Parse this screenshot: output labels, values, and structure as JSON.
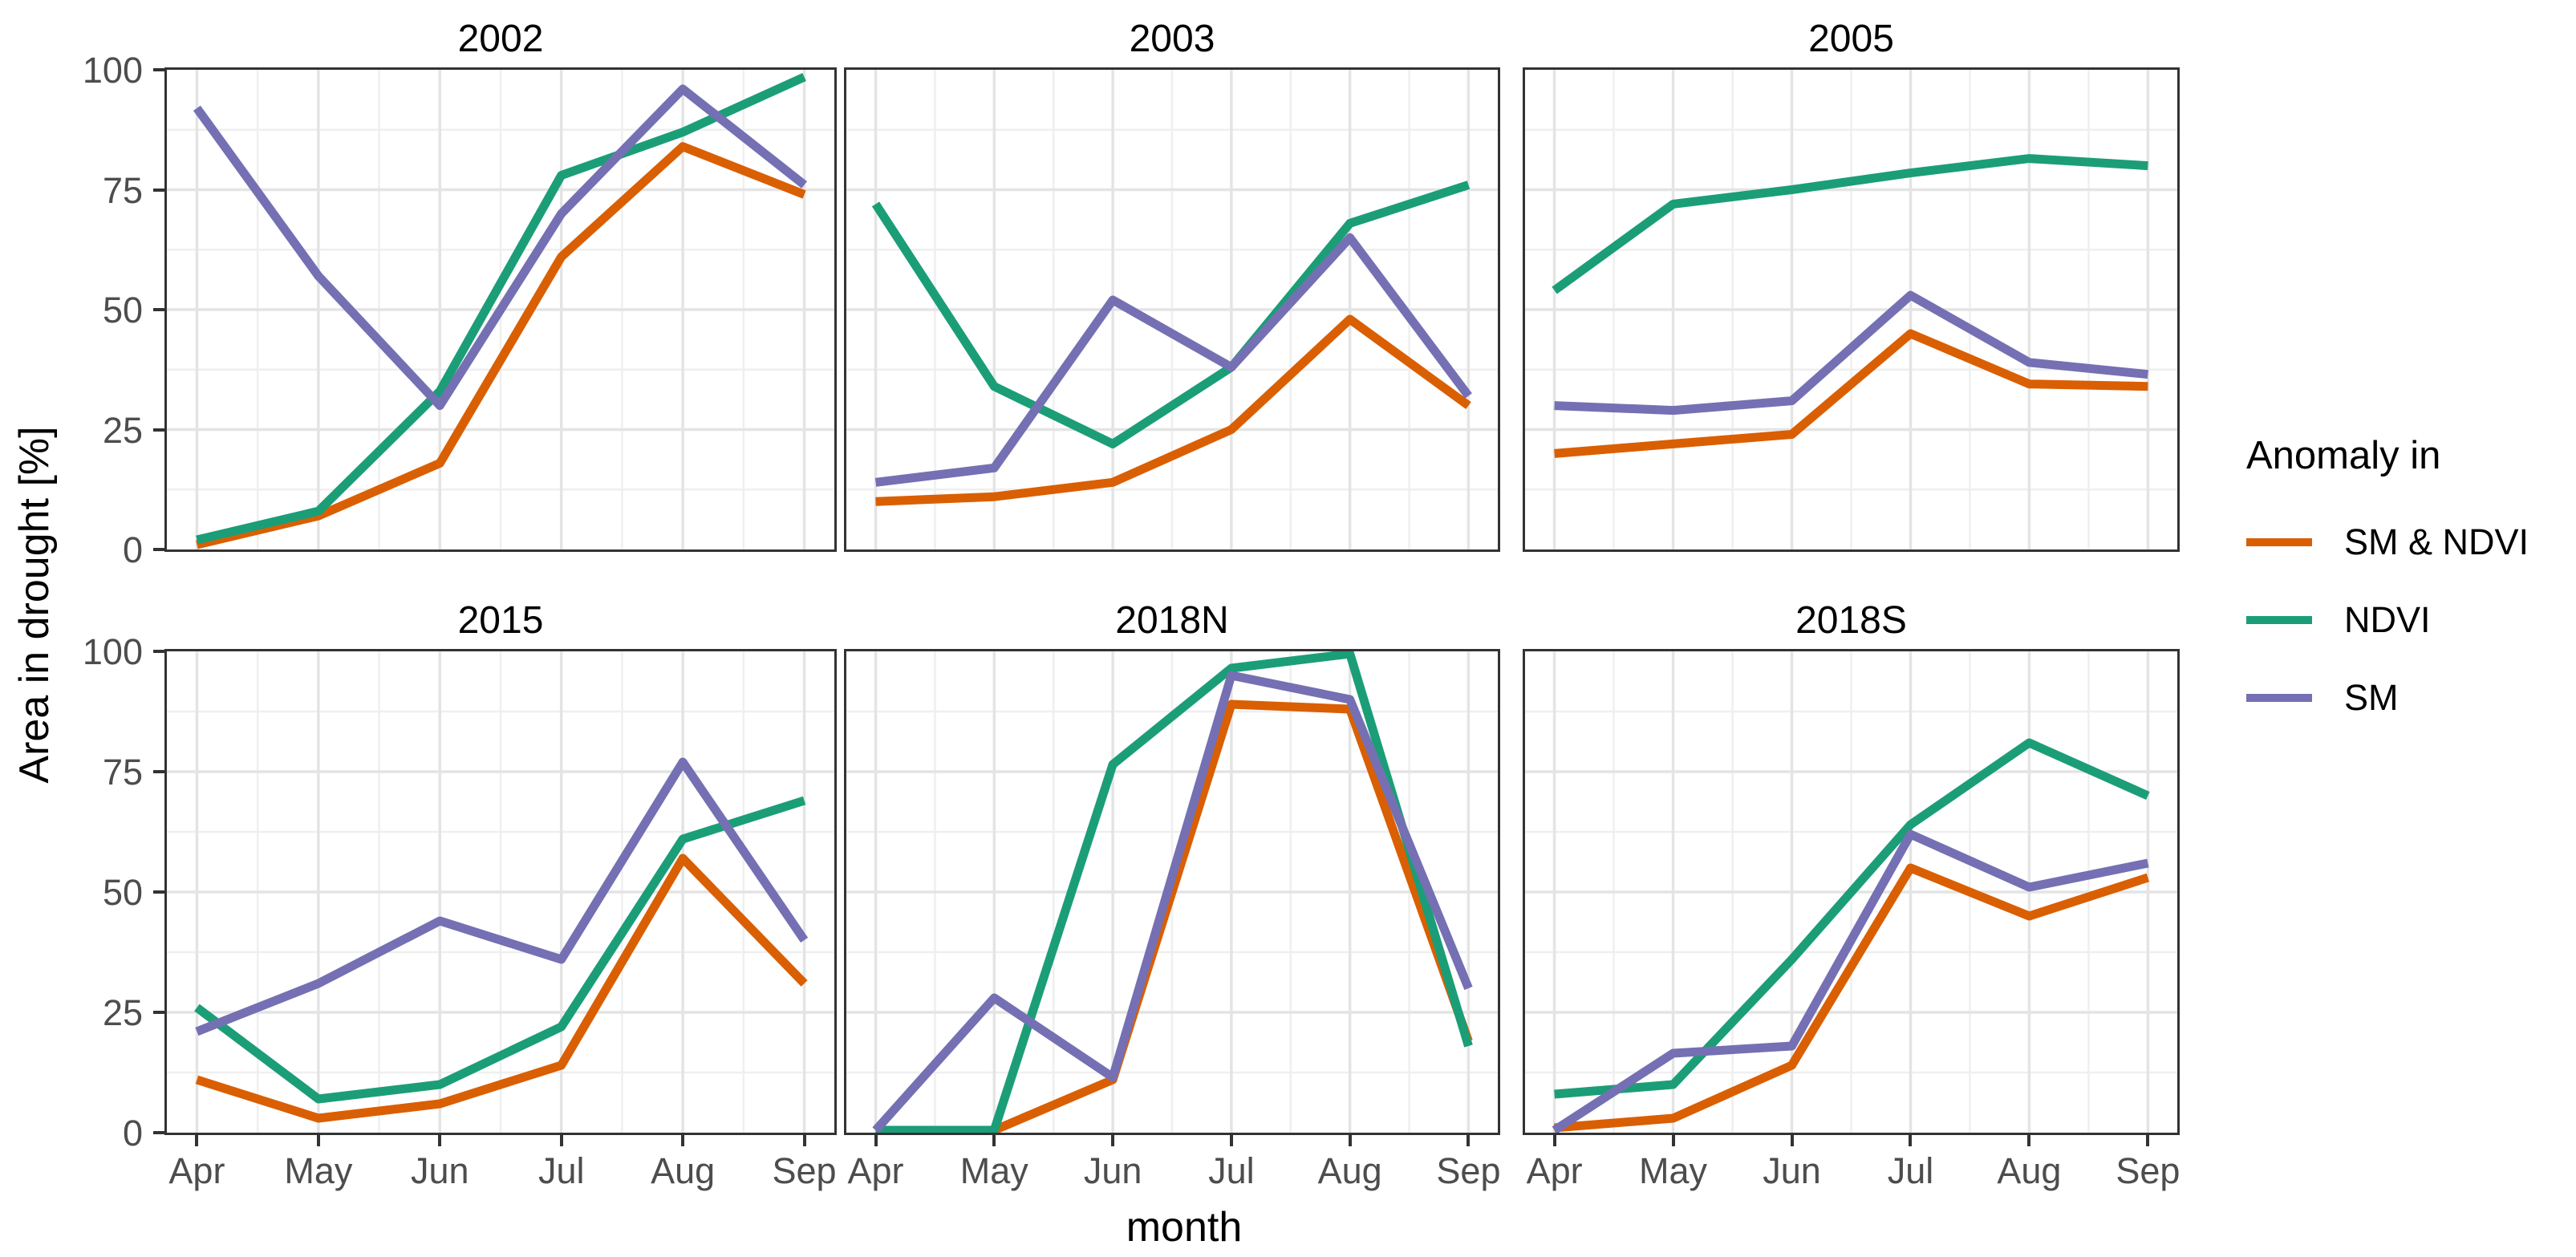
{
  "figure": {
    "y_axis_title": "Area in drought [%]",
    "x_axis_title": "month",
    "y_ticks": [
      "100",
      "75",
      "50",
      "25",
      "0"
    ],
    "x_ticks": [
      "Apr",
      "May",
      "Jun",
      "Jul",
      "Aug",
      "Sep"
    ]
  },
  "legend": {
    "title": "Anomaly in",
    "entries": [
      {
        "label": "SM & NDVI",
        "color": "#D95F02"
      },
      {
        "label": "NDVI",
        "color": "#1B9E77"
      },
      {
        "label": "SM",
        "color": "#7570B3"
      }
    ]
  },
  "chart_data": {
    "type": "line",
    "title": "",
    "xlabel": "month",
    "ylabel": "Area in drought [%]",
    "ylim": [
      0,
      100
    ],
    "y_major_ticks": [
      0,
      25,
      50,
      75,
      100
    ],
    "y_minor_ticks": [
      12.5,
      37.5,
      62.5,
      87.5
    ],
    "grid": true,
    "legend_position": "right",
    "legend_title": "Anomaly in",
    "categories": [
      "Apr",
      "May",
      "Jun",
      "Jul",
      "Aug",
      "Sep"
    ],
    "series_colors": {
      "SM & NDVI": "#D95F02",
      "NDVI": "#1B9E77",
      "SM": "#7570B3"
    },
    "facets": [
      {
        "title": "2002",
        "series": [
          {
            "name": "SM & NDVI",
            "values": [
              1,
              7,
              18,
              61,
              84,
              74
            ]
          },
          {
            "name": "NDVI",
            "values": [
              2,
              8,
              33,
              78,
              87,
              98.5
            ]
          },
          {
            "name": "SM",
            "values": [
              92,
              57,
              30,
              70,
              96,
              76
            ]
          }
        ]
      },
      {
        "title": "2003",
        "series": [
          {
            "name": "SM & NDVI",
            "values": [
              10,
              11,
              14,
              25,
              48,
              30
            ]
          },
          {
            "name": "NDVI",
            "values": [
              72,
              34,
              22,
              38,
              68,
              76
            ]
          },
          {
            "name": "SM",
            "values": [
              14,
              17,
              52,
              38,
              65,
              32
            ]
          }
        ]
      },
      {
        "title": "2005",
        "series": [
          {
            "name": "SM & NDVI",
            "values": [
              20,
              22,
              24,
              45,
              34.5,
              34
            ]
          },
          {
            "name": "NDVI",
            "values": [
              54,
              72,
              75,
              78.5,
              81.5,
              80
            ]
          },
          {
            "name": "SM",
            "values": [
              30,
              29,
              31,
              53,
              39,
              36.5
            ]
          }
        ]
      },
      {
        "title": "2015",
        "series": [
          {
            "name": "SM & NDVI",
            "values": [
              11,
              3,
              6,
              14,
              57,
              31
            ]
          },
          {
            "name": "NDVI",
            "values": [
              26,
              7,
              10,
              22,
              61,
              69
            ]
          },
          {
            "name": "SM",
            "values": [
              21,
              31,
              44,
              36,
              77,
              40
            ]
          }
        ]
      },
      {
        "title": "2018N",
        "series": [
          {
            "name": "SM & NDVI",
            "values": [
              0.5,
              0.5,
              11,
              89,
              88,
              19
            ]
          },
          {
            "name": "NDVI",
            "values": [
              0.5,
              0.5,
              76.5,
              96.5,
              99.5,
              18
            ]
          },
          {
            "name": "SM",
            "values": [
              0.5,
              28,
              11.5,
              95,
              90,
              30
            ]
          }
        ]
      },
      {
        "title": "2018S",
        "series": [
          {
            "name": "SM & NDVI",
            "values": [
              1,
              3,
              14,
              55,
              45,
              53
            ]
          },
          {
            "name": "NDVI",
            "values": [
              8,
              10,
              36,
              64,
              81,
              70
            ]
          },
          {
            "name": "SM",
            "values": [
              0.5,
              16.5,
              18,
              62,
              51,
              56
            ]
          }
        ]
      }
    ]
  }
}
